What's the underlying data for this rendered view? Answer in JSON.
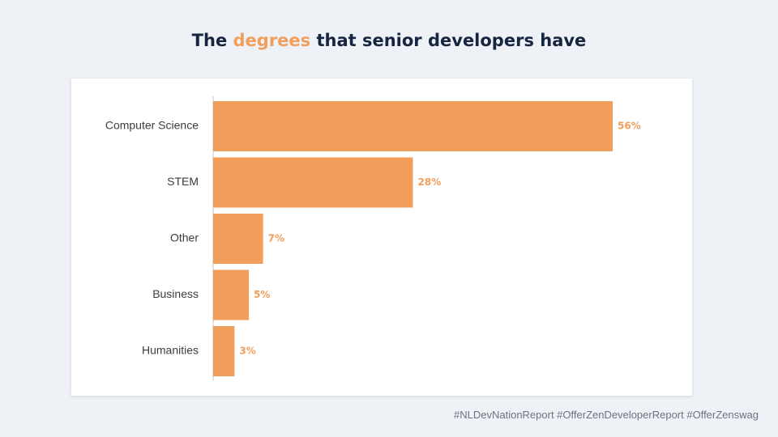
{
  "title": {
    "prefix": "The ",
    "highlight": "degrees",
    "suffix": " that senior developers have"
  },
  "chart_data": {
    "type": "bar",
    "orientation": "horizontal",
    "categories": [
      "Computer Science",
      "STEM",
      "Other",
      "Business",
      "Humanities"
    ],
    "values": [
      56,
      28,
      7,
      5,
      3
    ],
    "value_labels": [
      "56%",
      "28%",
      "7%",
      "5%",
      "3%"
    ],
    "unit": "%",
    "xlim": [
      0,
      56
    ],
    "xlabel": "",
    "ylabel": "",
    "grid": false,
    "legend": "none"
  },
  "colors": {
    "bar": "#f29e5b",
    "highlight": "#f29e5b",
    "title": "#172540",
    "axis": "#d9d9d9"
  },
  "footer": {
    "hashtags": "#NLDevNationReport #OfferZenDeveloperReport #OfferZenswag"
  }
}
